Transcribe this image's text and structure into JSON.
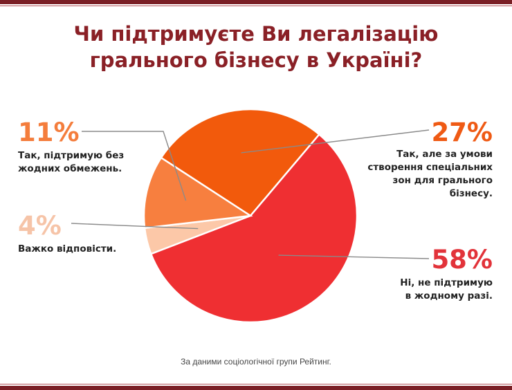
{
  "title_line1": "Чи підтримуєте Ви легалізацію",
  "title_line2": "грального бізнесу в Україні?",
  "footer": "За даними соціологічної групи Рейтинг.",
  "colors": {
    "frame": "#7a1f25",
    "title": "#8a2026",
    "leader": "#8a8a8a"
  },
  "chart_data": {
    "type": "pie",
    "slices": [
      {
        "label": "27%",
        "value": 27,
        "description": [
          "Так, але за умови",
          "створення спеціальних",
          "зон для грального",
          "бізнесу."
        ],
        "color": "#f25a0c",
        "label_color": "#ef5a14"
      },
      {
        "label": "58%",
        "value": 58,
        "description": [
          "Ні, не підтримую",
          "в жодному разі."
        ],
        "color": "#ef2f32",
        "label_color": "#e2333a"
      },
      {
        "label": "4%",
        "value": 4,
        "description": [
          "Важко відповісти."
        ],
        "color": "#fcc8a8",
        "label_color": "#f6c4a8"
      },
      {
        "label": "11%",
        "value": 11,
        "description": [
          "Так, підтримую без",
          "жодних обмежень."
        ],
        "color": "#f77f3f",
        "label_color": "#f47d3c"
      }
    ]
  }
}
